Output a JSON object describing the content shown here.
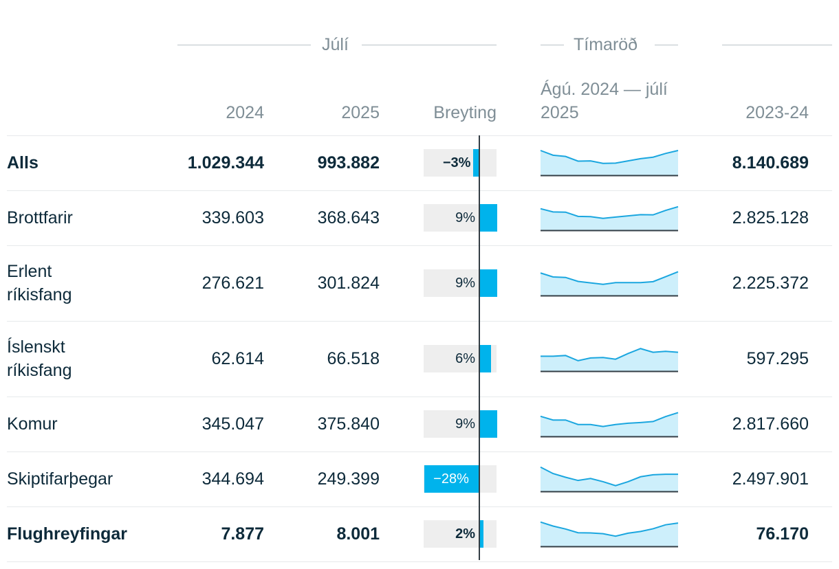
{
  "header": {
    "group_july": "Júlí",
    "group_timeseries": "Tímaröð",
    "col_2024": "2024",
    "col_2025": "2025",
    "col_change": "Breyting",
    "col_series": "Ágú. 2024 — júlí 2025",
    "col_2023_24": "2023-24"
  },
  "colors": {
    "bar": "#00b3ec",
    "bar_background": "#eeeeee",
    "spark_fill": "#cdeffb",
    "spark_line": "#1aa6df",
    "baseline": "#333d44"
  },
  "chart_data": {
    "type": "table",
    "x_label": "Ágú. 2024 — júlí 2025",
    "change_range_percent": [
      -28,
      9
    ],
    "rows": [
      {
        "name": "Alls",
        "bold": true,
        "v2024": "1.029.344",
        "v2025": "993.882",
        "change_label": "−3%",
        "change": -3,
        "total_2023_24": "8.140.689",
        "spark": [
          1.0,
          0.81,
          0.76,
          0.57,
          0.58,
          0.48,
          0.49,
          0.58,
          0.67,
          0.73,
          0.88,
          1.0
        ]
      },
      {
        "name": "Brottfarir",
        "bold": false,
        "v2024": "339.603",
        "v2025": "368.643",
        "change_label": "9%",
        "change": 9,
        "total_2023_24": "2.825.128",
        "spark": [
          0.87,
          0.74,
          0.73,
          0.56,
          0.55,
          0.48,
          0.53,
          0.58,
          0.63,
          0.62,
          0.8,
          0.95
        ]
      },
      {
        "name": "Erlent ríkisfang",
        "bold": false,
        "v2024": "276.621",
        "v2025": "301.824",
        "change_label": "9%",
        "change": 9,
        "total_2023_24": "2.225.372",
        "spark": [
          0.91,
          0.75,
          0.73,
          0.57,
          0.51,
          0.45,
          0.52,
          0.52,
          0.52,
          0.56,
          0.76,
          0.96
        ]
      },
      {
        "name": "Íslenskt ríkisfang",
        "bold": false,
        "v2024": "62.614",
        "v2025": "66.518",
        "change_label": "6%",
        "change": 6,
        "total_2023_24": "597.295",
        "spark": [
          0.6,
          0.6,
          0.63,
          0.42,
          0.53,
          0.55,
          0.48,
          0.71,
          0.91,
          0.76,
          0.8,
          0.76
        ]
      },
      {
        "name": "Komur",
        "bold": false,
        "v2024": "345.047",
        "v2025": "375.840",
        "change_label": "9%",
        "change": 9,
        "total_2023_24": "2.817.660",
        "spark": [
          0.81,
          0.66,
          0.66,
          0.48,
          0.48,
          0.4,
          0.48,
          0.53,
          0.56,
          0.6,
          0.8,
          0.96
        ]
      },
      {
        "name": "Skiptifarþegar",
        "bold": false,
        "v2024": "344.694",
        "v2025": "249.399",
        "change_label": "−28%",
        "change": -28,
        "total_2023_24": "2.497.901",
        "spark": [
          0.98,
          0.72,
          0.57,
          0.44,
          0.52,
          0.39,
          0.23,
          0.39,
          0.59,
          0.67,
          0.69,
          0.69
        ]
      },
      {
        "name": "Flughreyfingar",
        "bold": true,
        "v2024": "7.877",
        "v2025": "8.001",
        "change_label": "2%",
        "change": 2,
        "total_2023_24": "76.170",
        "spark": [
          0.98,
          0.82,
          0.7,
          0.55,
          0.54,
          0.51,
          0.41,
          0.53,
          0.6,
          0.71,
          0.87,
          0.94
        ]
      }
    ]
  }
}
